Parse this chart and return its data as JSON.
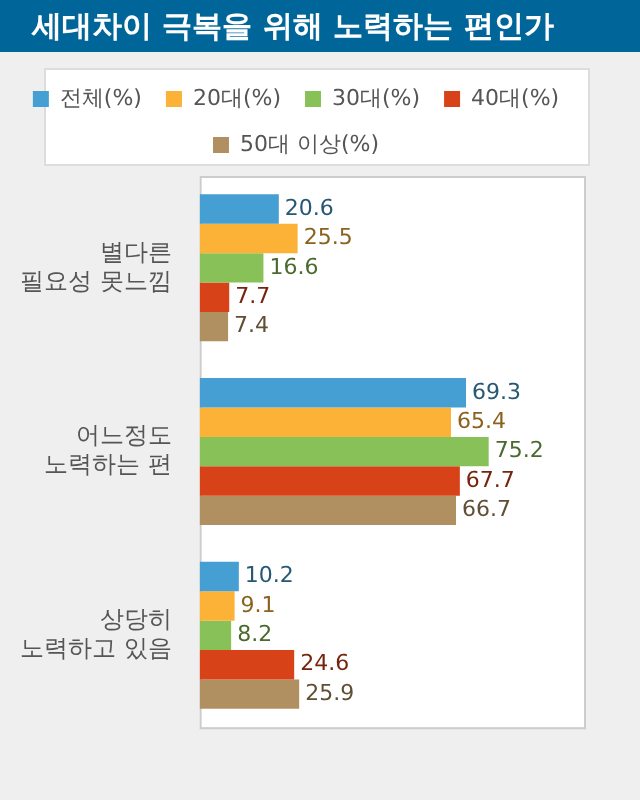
{
  "chart_data": {
    "type": "bar",
    "orientation": "horizontal",
    "title": "세대차이 극복을 위해 노력하는 편인가",
    "categories": [
      "별다른 필요성 못느낌",
      "어느정도 노력하는 편",
      "상당히 노력하고 있음"
    ],
    "series": [
      {
        "name": "전체(%)",
        "color": "#459fd2",
        "values": [
          20.6,
          69.3,
          10.2
        ]
      },
      {
        "name": "20대(%)",
        "color": "#fbb236",
        "values": [
          25.5,
          65.4,
          9.1
        ]
      },
      {
        "name": "30대(%)",
        "color": "#88c158",
        "values": [
          16.6,
          75.2,
          8.2
        ]
      },
      {
        "name": "40대(%)",
        "color": "#d84218",
        "values": [
          7.7,
          67.7,
          24.6
        ]
      },
      {
        "name": "50대 이상(%)",
        "color": "#b09060",
        "values": [
          7.4,
          66.7,
          25.9
        ]
      }
    ],
    "data_labels": true,
    "legend": "top",
    "grid": false
  }
}
